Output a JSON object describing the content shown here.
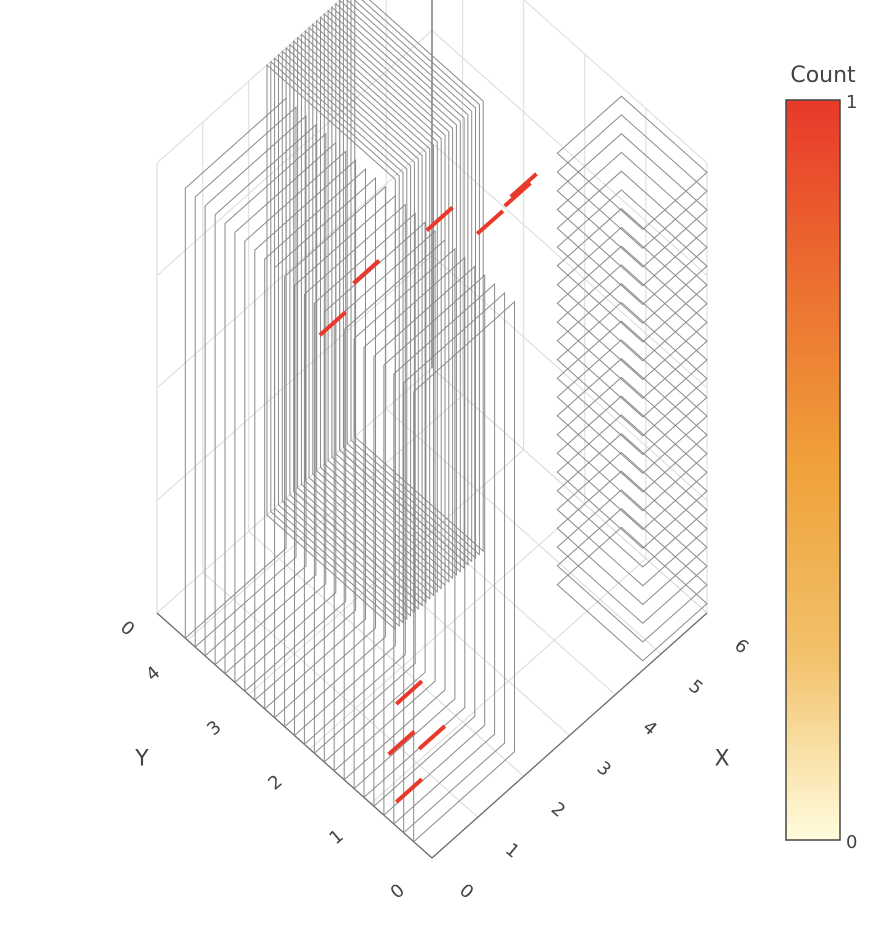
{
  "chart_data": {
    "type": "3d-volume-slices",
    "title": "",
    "axes": {
      "x": {
        "label": "X",
        "ticks": [
          "0",
          "1",
          "2",
          "3",
          "4",
          "5",
          "6"
        ],
        "range": [
          0,
          6
        ]
      },
      "y": {
        "label": "Y",
        "ticks": [
          "0",
          "1",
          "2",
          "3",
          "4"
        ],
        "range": [
          0,
          4.5
        ]
      },
      "z": {
        "label": "",
        "ticks": [
          "0"
        ],
        "range": [
          0,
          1
        ]
      }
    },
    "colorbar": {
      "title": "Count",
      "min": 0,
      "max": 1,
      "ticks": [
        "0",
        "1"
      ],
      "colors": [
        "#fffcdd",
        "#f2c16a",
        "#f0a23b",
        "#ec7030",
        "#e8392a"
      ]
    },
    "slice_counts": {
      "x_slices": 24,
      "y_slices": 24,
      "z_slices": 24
    },
    "highlighted_cells": [
      {
        "x": 0.5,
        "y": 2.0,
        "z": 0.9,
        "count": 1
      },
      {
        "x": 1.5,
        "y": 2.2,
        "z": 0.9,
        "count": 1
      },
      {
        "x": 3.5,
        "y": 2.5,
        "z": 0.8,
        "count": 1
      },
      {
        "x": 5.2,
        "y": 2.5,
        "z": 0.7,
        "count": 1
      },
      {
        "x": 5.6,
        "y": 2.7,
        "z": 0.66,
        "count": 1
      },
      {
        "x": 5.0,
        "y": 2.8,
        "z": 0.62,
        "count": 1
      },
      {
        "x": 0.3,
        "y": 0.6,
        "z": 0.05,
        "count": 1
      },
      {
        "x": 0.8,
        "y": 1.1,
        "z": 0.05,
        "count": 1
      },
      {
        "x": 1.2,
        "y": 0.9,
        "z": 0.05,
        "count": 1
      },
      {
        "x": 1.5,
        "y": 1.5,
        "z": 0.05,
        "count": 1
      }
    ],
    "grid": true,
    "legend": "none"
  }
}
